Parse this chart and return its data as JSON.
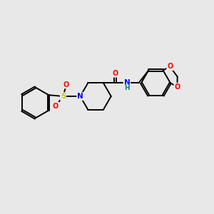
{
  "background_color": "#e8e8e8",
  "bond_color": "#000000",
  "atom_colors": {
    "N": "#0000ff",
    "O": "#ff0000",
    "S": "#cccc00",
    "H": "#008080",
    "C": "#000000"
  },
  "figsize": [
    3.0,
    3.0
  ],
  "dpi": 100,
  "xlim": [
    0,
    10
  ],
  "ylim": [
    2,
    8
  ]
}
